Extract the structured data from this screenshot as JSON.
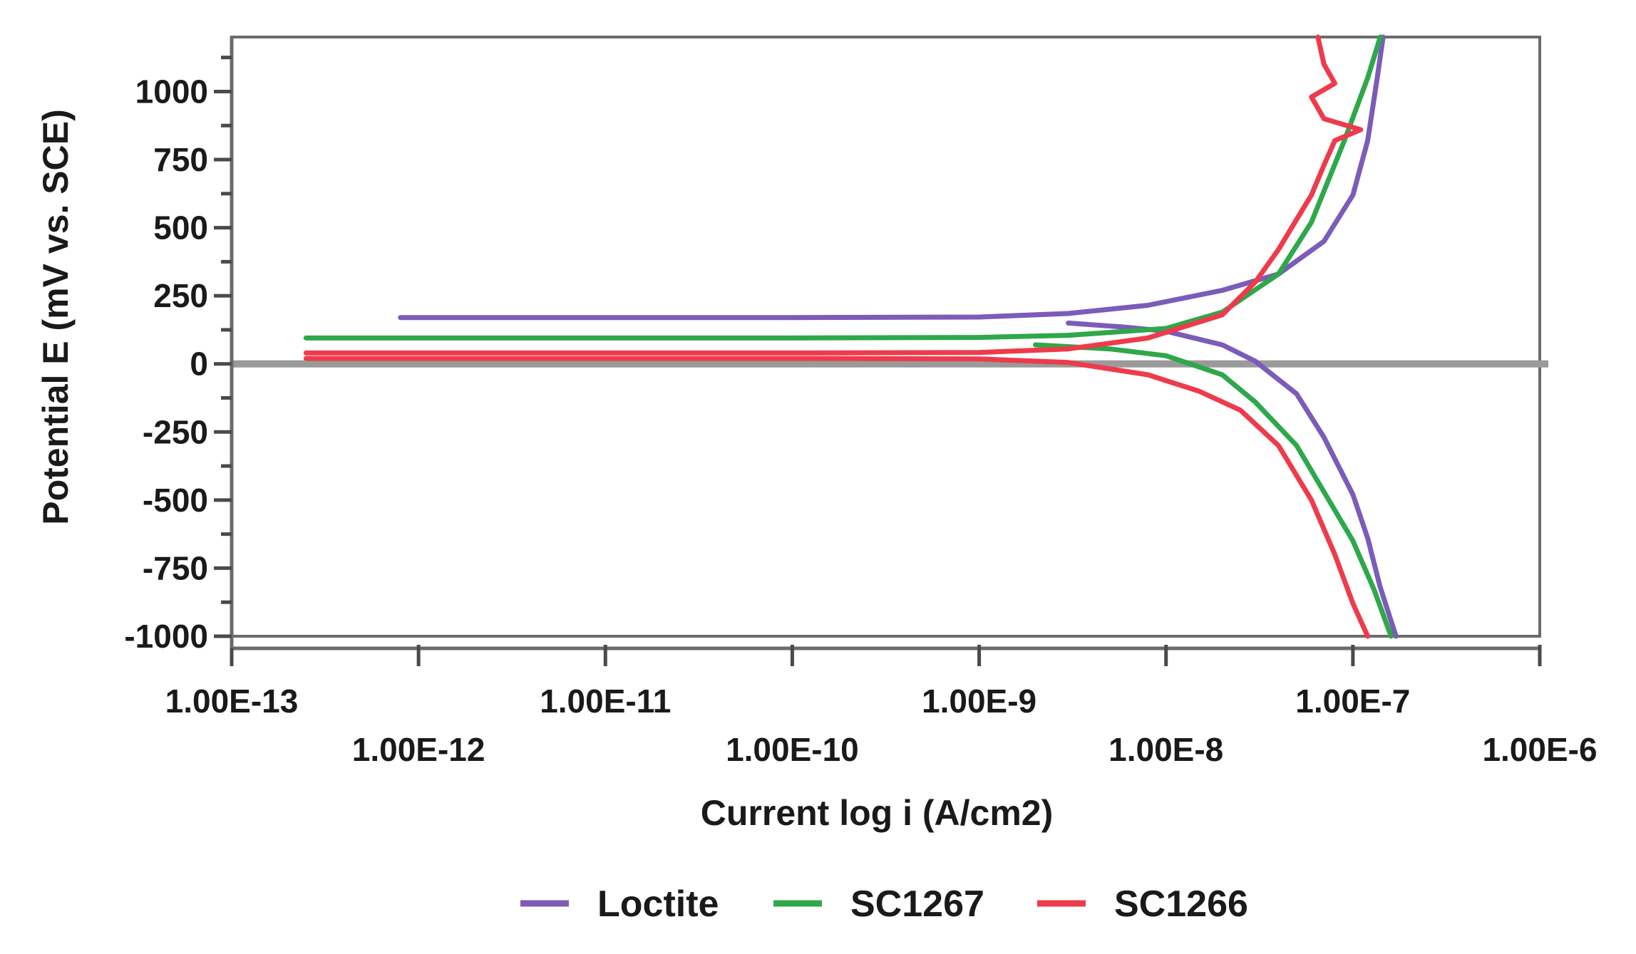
{
  "chart_data": {
    "type": "line",
    "xlabel": "Current log i (A/cm2)",
    "ylabel": "Potential E (mV vs. SCE)",
    "x_scale": "log",
    "xlim": [
      1e-13,
      1e-06
    ],
    "ylim": [
      -1000,
      1200
    ],
    "x_ticks": [
      1e-13,
      1e-12,
      1e-11,
      1e-10,
      1e-09,
      1e-08,
      1e-07,
      1e-06
    ],
    "x_tick_labels": [
      "1.00E-13",
      "1.00E-12",
      "1.00E-11",
      "1.00E-10",
      "1.00E-9",
      "1.00E-8",
      "1.00E-7",
      "1.00E-6"
    ],
    "y_ticks": [
      -1000,
      -750,
      -500,
      -250,
      0,
      250,
      500,
      750,
      1000
    ],
    "y_tick_labels": [
      "-1000",
      "-750",
      "-500",
      "-250",
      "0",
      "250",
      "500",
      "750",
      "1000"
    ],
    "reference_line": {
      "y": 0,
      "color": "#9a9a9a"
    },
    "grid": false,
    "legend_position": "bottom",
    "series": [
      {
        "name": "Loctite",
        "color": "#7b5cb8",
        "anodic": [
          [
            8e-13,
            170
          ],
          [
            1e-11,
            170
          ],
          [
            1e-10,
            170
          ],
          [
            1e-09,
            172
          ],
          [
            3e-09,
            185
          ],
          [
            8e-09,
            215
          ],
          [
            2e-08,
            270
          ],
          [
            4e-08,
            330
          ],
          [
            7e-08,
            450
          ],
          [
            1e-07,
            620
          ],
          [
            1.2e-07,
            820
          ],
          [
            1.35e-07,
            1050
          ],
          [
            1.45e-07,
            1200
          ]
        ],
        "cathodic": [
          [
            3e-09,
            150
          ],
          [
            6e-09,
            135
          ],
          [
            1e-08,
            120
          ],
          [
            2e-08,
            70
          ],
          [
            3e-08,
            10
          ],
          [
            5e-08,
            -110
          ],
          [
            7e-08,
            -270
          ],
          [
            1e-07,
            -480
          ],
          [
            1.2e-07,
            -640
          ],
          [
            1.4e-07,
            -820
          ],
          [
            1.7e-07,
            -1000
          ]
        ]
      },
      {
        "name": "SC1267",
        "color": "#2ea84a",
        "anodic": [
          [
            2.5e-13,
            95
          ],
          [
            1e-11,
            95
          ],
          [
            1e-10,
            95
          ],
          [
            1e-09,
            97
          ],
          [
            3e-09,
            105
          ],
          [
            1e-08,
            130
          ],
          [
            2e-08,
            190
          ],
          [
            4e-08,
            330
          ],
          [
            6e-08,
            520
          ],
          [
            9e-08,
            820
          ],
          [
            1.2e-07,
            1050
          ],
          [
            1.4e-07,
            1200
          ]
        ],
        "cathodic": [
          [
            2e-09,
            70
          ],
          [
            5e-09,
            55
          ],
          [
            1e-08,
            30
          ],
          [
            2e-08,
            -40
          ],
          [
            3e-08,
            -140
          ],
          [
            5e-08,
            -300
          ],
          [
            7e-08,
            -470
          ],
          [
            1e-07,
            -650
          ],
          [
            1.3e-07,
            -830
          ],
          [
            1.6e-07,
            -1000
          ]
        ]
      },
      {
        "name": "SC1266",
        "color": "#ee3b4c",
        "anodic": [
          [
            2.5e-13,
            40
          ],
          [
            1e-11,
            40
          ],
          [
            1e-10,
            40
          ],
          [
            1e-09,
            42
          ],
          [
            3e-09,
            55
          ],
          [
            8e-09,
            95
          ],
          [
            2e-08,
            180
          ],
          [
            3e-08,
            300
          ],
          [
            4e-08,
            420
          ],
          [
            5e-08,
            530
          ],
          [
            6e-08,
            620
          ],
          [
            7e-08,
            730
          ],
          [
            8e-08,
            820
          ],
          [
            1.1e-07,
            860
          ],
          [
            7e-08,
            900
          ],
          [
            6e-08,
            980
          ],
          [
            8e-08,
            1030
          ],
          [
            7e-08,
            1100
          ],
          [
            6.5e-08,
            1200
          ]
        ],
        "cathodic": [
          [
            2.5e-13,
            20
          ],
          [
            1e-11,
            20
          ],
          [
            1e-10,
            20
          ],
          [
            1e-09,
            18
          ],
          [
            3e-09,
            5
          ],
          [
            8e-09,
            -40
          ],
          [
            1.5e-08,
            -100
          ],
          [
            2.5e-08,
            -170
          ],
          [
            4e-08,
            -300
          ],
          [
            6e-08,
            -500
          ],
          [
            8e-08,
            -700
          ],
          [
            1e-07,
            -880
          ],
          [
            1.2e-07,
            -1000
          ]
        ]
      }
    ]
  }
}
